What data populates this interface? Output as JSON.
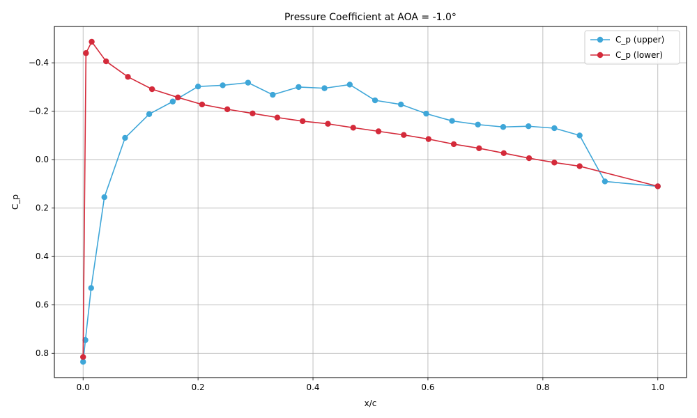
{
  "chart_data": {
    "type": "line",
    "title": "Pressure Coefficient at AOA = -1.0°",
    "xlabel": "x/c",
    "ylabel": "C_p",
    "xlim": [
      -0.05,
      1.05
    ],
    "ylim": [
      0.9,
      -0.55
    ],
    "y_inverted": true,
    "grid": true,
    "legend_position": "top-right",
    "xticks": [
      0.0,
      0.2,
      0.4,
      0.6,
      0.8,
      1.0
    ],
    "xtick_labels": [
      "0.0",
      "0.2",
      "0.4",
      "0.6",
      "0.8",
      "1.0"
    ],
    "yticks": [
      -0.4,
      -0.2,
      0.0,
      0.2,
      0.4,
      0.6,
      0.8
    ],
    "ytick_labels": [
      "−0.4",
      "−0.2",
      "0.0",
      "0.2",
      "0.4",
      "0.6",
      "0.8"
    ],
    "series": [
      {
        "name": "C_p (upper)",
        "color": "#3ea6d8",
        "x": [
          0.0,
          0.004,
          0.014,
          0.037,
          0.073,
          0.115,
          0.156,
          0.2,
          0.243,
          0.287,
          0.33,
          0.375,
          0.42,
          0.464,
          0.508,
          0.553,
          0.597,
          0.642,
          0.687,
          0.731,
          0.775,
          0.82,
          0.864,
          0.908,
          1.0
        ],
        "y": [
          0.835,
          0.745,
          0.53,
          0.155,
          -0.09,
          -0.188,
          -0.24,
          -0.302,
          -0.307,
          -0.318,
          -0.268,
          -0.3,
          -0.295,
          -0.31,
          -0.245,
          -0.228,
          -0.19,
          -0.16,
          -0.145,
          -0.135,
          -0.138,
          -0.13,
          -0.1,
          0.09,
          0.11
        ]
      },
      {
        "name": "C_p (lower)",
        "color": "#d42a3a",
        "x": [
          0.0,
          0.005,
          0.015,
          0.04,
          0.078,
          0.12,
          0.165,
          0.207,
          0.251,
          0.295,
          0.338,
          0.382,
          0.426,
          0.47,
          0.514,
          0.558,
          0.601,
          0.645,
          0.689,
          0.732,
          0.776,
          0.82,
          0.864,
          1.0
        ],
        "y": [
          0.815,
          -0.44,
          -0.487,
          -0.406,
          -0.342,
          -0.291,
          -0.257,
          -0.228,
          -0.208,
          -0.191,
          -0.174,
          -0.159,
          -0.148,
          -0.132,
          -0.117,
          -0.102,
          -0.085,
          -0.064,
          -0.047,
          -0.027,
          -0.006,
          0.012,
          0.027,
          0.11
        ]
      }
    ]
  }
}
